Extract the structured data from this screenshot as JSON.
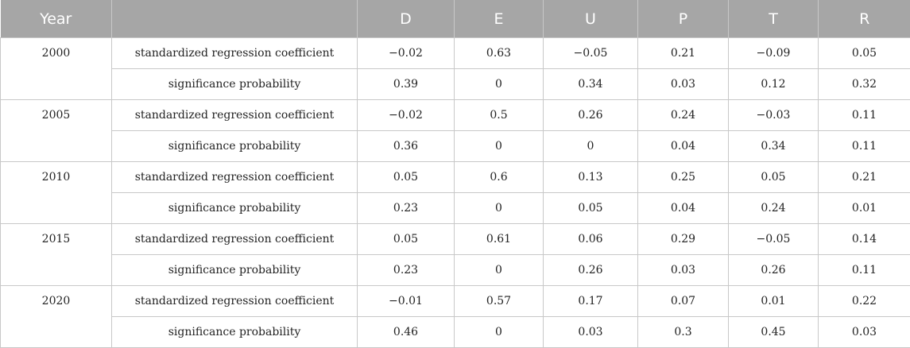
{
  "header": {
    "year": "Year",
    "blank": "",
    "cols": [
      "D",
      "E",
      "U",
      "P",
      "T",
      "R"
    ]
  },
  "rows": [
    {
      "year": "2000",
      "coef_label": "standardized regression coefficient",
      "coef": [
        "−0.02",
        "0.63",
        "−0.05",
        "0.21",
        "−0.09",
        "0.05"
      ],
      "sig_label": "significance probability",
      "sig": [
        "0.39",
        "0",
        "0.34",
        "0.03",
        "0.12",
        "0.32"
      ]
    },
    {
      "year": "2005",
      "coef_label": "standardized regression coefficient",
      "coef": [
        "−0.02",
        "0.5",
        "0.26",
        "0.24",
        "−0.03",
        "0.11"
      ],
      "sig_label": "significance probability",
      "sig": [
        "0.36",
        "0",
        "0",
        "0.04",
        "0.34",
        "0.11"
      ]
    },
    {
      "year": "2010",
      "coef_label": "standardized regression coefficient",
      "coef": [
        "0.05",
        "0.6",
        "0.13",
        "0.25",
        "0.05",
        "0.21"
      ],
      "sig_label": "significance probability",
      "sig": [
        "0.23",
        "0",
        "0.05",
        "0.04",
        "0.24",
        "0.01"
      ]
    },
    {
      "year": "2015",
      "coef_label": "standardized regression coefficient",
      "coef": [
        "0.05",
        "0.61",
        "0.06",
        "0.29",
        "−0.05",
        "0.14"
      ],
      "sig_label": "significance probability",
      "sig": [
        "0.23",
        "0",
        "0.26",
        "0.03",
        "0.26",
        "0.11"
      ]
    },
    {
      "year": "2020",
      "coef_label": "standardized regression coefficient",
      "coef": [
        "−0.01",
        "0.57",
        "0.17",
        "0.07",
        "0.01",
        "0.22"
      ],
      "sig_label": "significance probability",
      "sig": [
        "0.46",
        "0",
        "0.03",
        "0.3",
        "0.45",
        "0.03"
      ]
    }
  ]
}
